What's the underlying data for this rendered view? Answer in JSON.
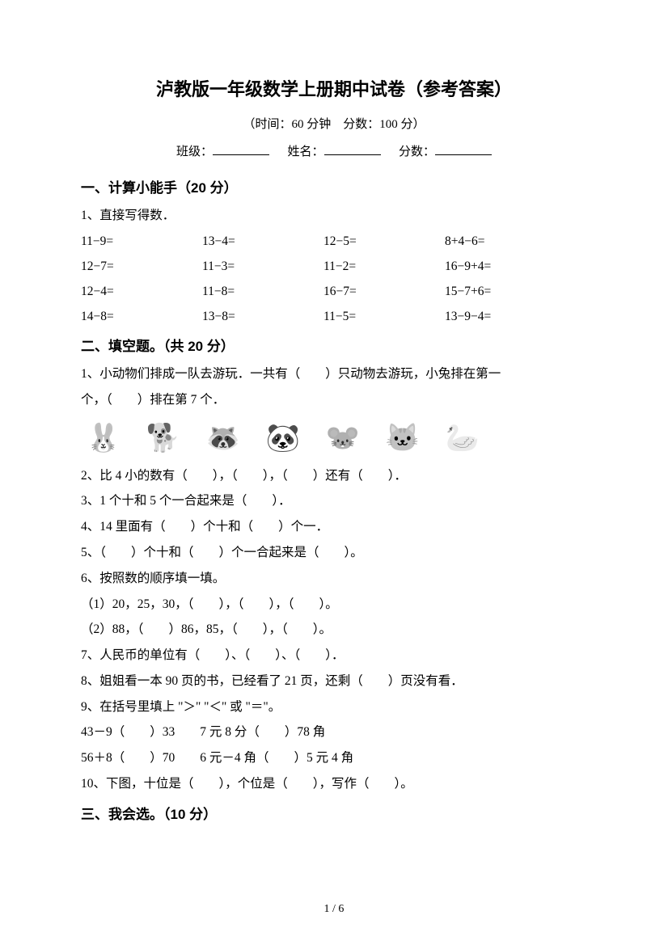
{
  "title": "泸教版一年级数学上册期中试卷（参考答案）",
  "subtitle": "（时间：60 分钟　分数：100 分）",
  "info": {
    "class_label": "班级：",
    "name_label": "姓名：",
    "score_label": "分数："
  },
  "section1": {
    "heading": "一、计算小能手（20 分）",
    "q1_label": "1、直接写得数．",
    "rows": [
      [
        "11−9=",
        "13−4=",
        "12−5=",
        "8+4−6="
      ],
      [
        "12−7=",
        "11−3=",
        "11−2=",
        "16−9+4="
      ],
      [
        "12−4=",
        "11−8=",
        "16−7=",
        "15−7+6="
      ],
      [
        "14−8=",
        "13−8=",
        "11−5=",
        "13−9−4="
      ]
    ]
  },
  "section2": {
    "heading": "二、填空题。（共 20 分）",
    "q1a": "1、小动物们排成一队去游玩．一共有（　　）只动物去游玩，小兔排在第一",
    "q1b": "个，（　　）排在第 7 个．",
    "animals": [
      "🐰",
      "🐕",
      "🦝",
      "🐼",
      "🐭",
      "🐱",
      "🦢"
    ],
    "q2": "2、比 4 小的数有（　　），（　　），（　　）还有（　　）．",
    "q3": "3、1 个十和 5 个一合起来是（　　）．",
    "q4": "4、14 里面有（　　）个十和（　　）个一．",
    "q5": "5、（　　）个十和（　　）个一合起来是（　　）。",
    "q6": "6、按照数的顺序填一填。",
    "q6a": "（1）20，25，30，（　　），（　　），（　　）。",
    "q6b": "（2）88，（　　）86，85，（　　），（　　）。",
    "q7": "7、人民币的单位有（　　）、（　　）、（　　）．",
    "q8": "8、姐姐看一本 90 页的书，已经看了 21 页，还剩（　　）页没有看．",
    "q9": "9、在括号里填上 \"＞\" \"＜\" 或 \"＝\"。",
    "q9a": "43－9（　　）33　　7 元 8 分（　　）78 角",
    "q9b": "56＋8（　　）70　　6 元－4 角（　　）5 元 4 角",
    "q10": "10、下图，十位是（　　），个位是（　　），写作（　　）。"
  },
  "section3": {
    "heading": "三、我会选。（10 分）"
  },
  "page_number": "1 / 6"
}
